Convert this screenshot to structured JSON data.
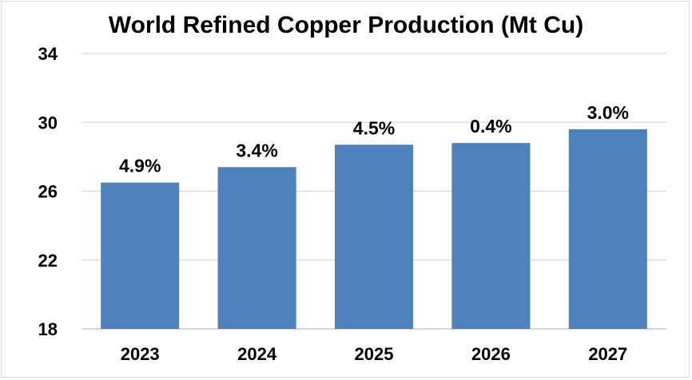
{
  "chart_data": {
    "type": "bar",
    "title": "World Refined Copper Production (Mt Cu)",
    "xlabel": "",
    "ylabel": "",
    "categories": [
      "2023",
      "2024",
      "2025",
      "2026",
      "2027"
    ],
    "values": [
      26.5,
      27.4,
      28.7,
      28.8,
      29.6
    ],
    "data_labels": [
      "4.9%",
      "3.4%",
      "4.5%",
      "0.4%",
      "3.0%"
    ],
    "ylim": [
      18,
      34
    ],
    "yticks": [
      18,
      22,
      26,
      30,
      34
    ],
    "grid": true,
    "legend": "none",
    "bar_color": "#4F81BD",
    "grid_color": "#D9D9D9"
  }
}
